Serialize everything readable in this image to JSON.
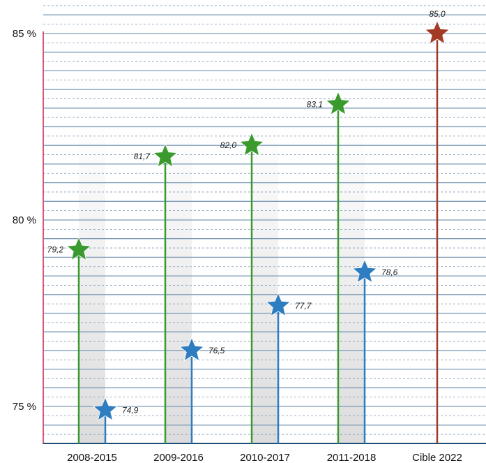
{
  "chart_data": {
    "type": "lollipop",
    "title": "",
    "xlabel": "",
    "ylabel": "",
    "ylim": [
      74.0,
      85.8
    ],
    "yticks": [
      {
        "value": 75,
        "label": "75 %"
      },
      {
        "value": 80,
        "label": "80 %"
      },
      {
        "value": 85,
        "label": "85 %"
      }
    ],
    "grid": true,
    "categories": [
      "2008-2015",
      "2009-2016",
      "2010-2017",
      "2011-2018",
      "Cible 2022"
    ],
    "series": [
      {
        "color": "#3a9a2e",
        "values": [
          79.2,
          81.7,
          82.0,
          83.1,
          null
        ],
        "labels": [
          "79,2",
          "81,7",
          "82,0",
          "83,1",
          null
        ]
      },
      {
        "color": "#2e7dc0",
        "values": [
          74.9,
          76.5,
          77.7,
          78.6,
          null
        ],
        "labels": [
          "74,9",
          "76,5",
          "77,7",
          "78,6",
          null
        ]
      },
      {
        "color": "#a33a26",
        "values": [
          null,
          null,
          null,
          null,
          85.0
        ],
        "labels": [
          null,
          null,
          null,
          null,
          "85,0"
        ]
      }
    ],
    "colors": {
      "green": "#3a9a2e",
      "blue": "#2e7dc0",
      "red": "#a33a26",
      "grid": "#7a9ab8",
      "axis": "#d45a78"
    }
  }
}
